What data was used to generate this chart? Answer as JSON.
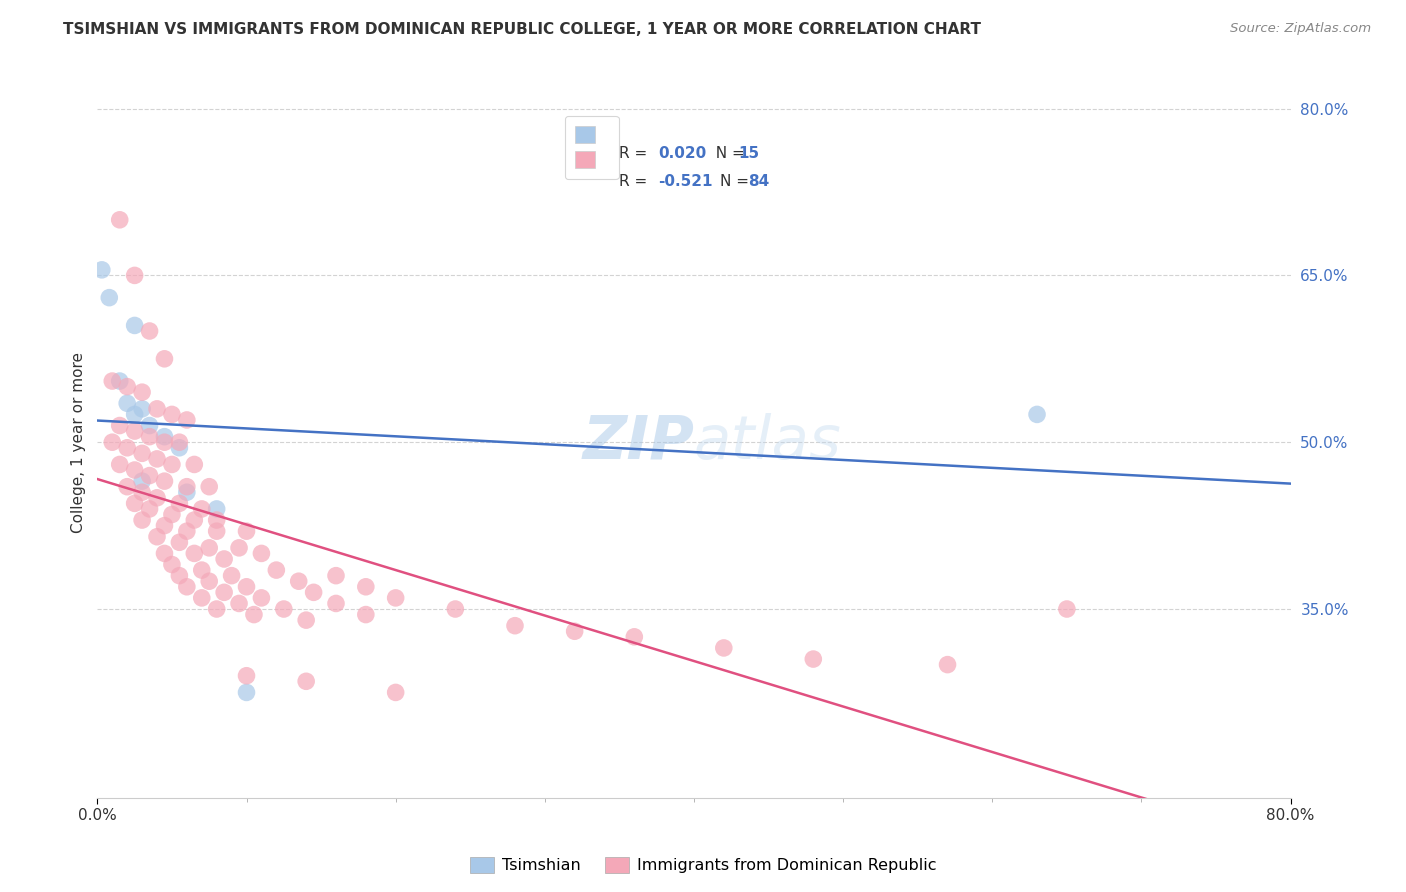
{
  "title": "TSIMSHIAN VS IMMIGRANTS FROM DOMINICAN REPUBLIC COLLEGE, 1 YEAR OR MORE CORRELATION CHART",
  "source": "Source: ZipAtlas.com",
  "ylabel": "College, 1 year or more",
  "xlim": [
    0.0,
    80.0
  ],
  "ylim": [
    18.0,
    82.0
  ],
  "yticks": [
    35.0,
    50.0,
    65.0,
    80.0
  ],
  "xticks": [
    0.0,
    80.0
  ],
  "xtick_labels": [
    "0.0%",
    "80.0%"
  ],
  "legend_r1_label": "R = ",
  "legend_r1_val": "0.020",
  "legend_n1_label": "N = ",
  "legend_n1_val": "15",
  "legend_r2_label": "R = ",
  "legend_r2_val": "-0.521",
  "legend_n2_label": "N = ",
  "legend_n2_val": "84",
  "color_blue": "#a8c8e8",
  "color_pink": "#f4a8b8",
  "line_blue": "#4472c4",
  "line_pink": "#e05080",
  "text_blue": "#4472c4",
  "background": "#ffffff",
  "grid_color": "#c8c8c8",
  "watermark": "ZIPatlas",
  "tsimshian_points": [
    [
      0.3,
      65.5
    ],
    [
      2.5,
      60.5
    ],
    [
      0.8,
      63.0
    ],
    [
      1.5,
      55.5
    ],
    [
      2.0,
      53.5
    ],
    [
      2.5,
      52.5
    ],
    [
      3.0,
      53.0
    ],
    [
      3.5,
      51.5
    ],
    [
      4.5,
      50.5
    ],
    [
      5.5,
      49.5
    ],
    [
      3.0,
      46.5
    ],
    [
      6.0,
      45.5
    ],
    [
      8.0,
      44.0
    ],
    [
      63.0,
      52.5
    ],
    [
      10.0,
      27.5
    ]
  ],
  "dominican_points": [
    [
      1.5,
      70.0
    ],
    [
      2.5,
      65.0
    ],
    [
      3.5,
      60.0
    ],
    [
      4.5,
      57.5
    ],
    [
      1.0,
      55.5
    ],
    [
      2.0,
      55.0
    ],
    [
      3.0,
      54.5
    ],
    [
      4.0,
      53.0
    ],
    [
      5.0,
      52.5
    ],
    [
      6.0,
      52.0
    ],
    [
      1.5,
      51.5
    ],
    [
      2.5,
      51.0
    ],
    [
      3.5,
      50.5
    ],
    [
      4.5,
      50.0
    ],
    [
      5.5,
      50.0
    ],
    [
      1.0,
      50.0
    ],
    [
      2.0,
      49.5
    ],
    [
      3.0,
      49.0
    ],
    [
      4.0,
      48.5
    ],
    [
      5.0,
      48.0
    ],
    [
      6.5,
      48.0
    ],
    [
      1.5,
      48.0
    ],
    [
      2.5,
      47.5
    ],
    [
      3.5,
      47.0
    ],
    [
      4.5,
      46.5
    ],
    [
      6.0,
      46.0
    ],
    [
      7.5,
      46.0
    ],
    [
      2.0,
      46.0
    ],
    [
      3.0,
      45.5
    ],
    [
      4.0,
      45.0
    ],
    [
      5.5,
      44.5
    ],
    [
      7.0,
      44.0
    ],
    [
      2.5,
      44.5
    ],
    [
      3.5,
      44.0
    ],
    [
      5.0,
      43.5
    ],
    [
      6.5,
      43.0
    ],
    [
      8.0,
      43.0
    ],
    [
      3.0,
      43.0
    ],
    [
      4.5,
      42.5
    ],
    [
      6.0,
      42.0
    ],
    [
      8.0,
      42.0
    ],
    [
      10.0,
      42.0
    ],
    [
      4.0,
      41.5
    ],
    [
      5.5,
      41.0
    ],
    [
      7.5,
      40.5
    ],
    [
      9.5,
      40.5
    ],
    [
      4.5,
      40.0
    ],
    [
      6.5,
      40.0
    ],
    [
      8.5,
      39.5
    ],
    [
      11.0,
      40.0
    ],
    [
      5.0,
      39.0
    ],
    [
      7.0,
      38.5
    ],
    [
      9.0,
      38.0
    ],
    [
      12.0,
      38.5
    ],
    [
      5.5,
      38.0
    ],
    [
      7.5,
      37.5
    ],
    [
      10.0,
      37.0
    ],
    [
      13.5,
      37.5
    ],
    [
      16.0,
      38.0
    ],
    [
      6.0,
      37.0
    ],
    [
      8.5,
      36.5
    ],
    [
      11.0,
      36.0
    ],
    [
      14.5,
      36.5
    ],
    [
      18.0,
      37.0
    ],
    [
      7.0,
      36.0
    ],
    [
      9.5,
      35.5
    ],
    [
      12.5,
      35.0
    ],
    [
      16.0,
      35.5
    ],
    [
      20.0,
      36.0
    ],
    [
      8.0,
      35.0
    ],
    [
      10.5,
      34.5
    ],
    [
      14.0,
      34.0
    ],
    [
      18.0,
      34.5
    ],
    [
      24.0,
      35.0
    ],
    [
      28.0,
      33.5
    ],
    [
      32.0,
      33.0
    ],
    [
      36.0,
      32.5
    ],
    [
      42.0,
      31.5
    ],
    [
      48.0,
      30.5
    ],
    [
      57.0,
      30.0
    ],
    [
      65.0,
      35.0
    ],
    [
      10.0,
      29.0
    ],
    [
      14.0,
      28.5
    ],
    [
      20.0,
      27.5
    ]
  ]
}
